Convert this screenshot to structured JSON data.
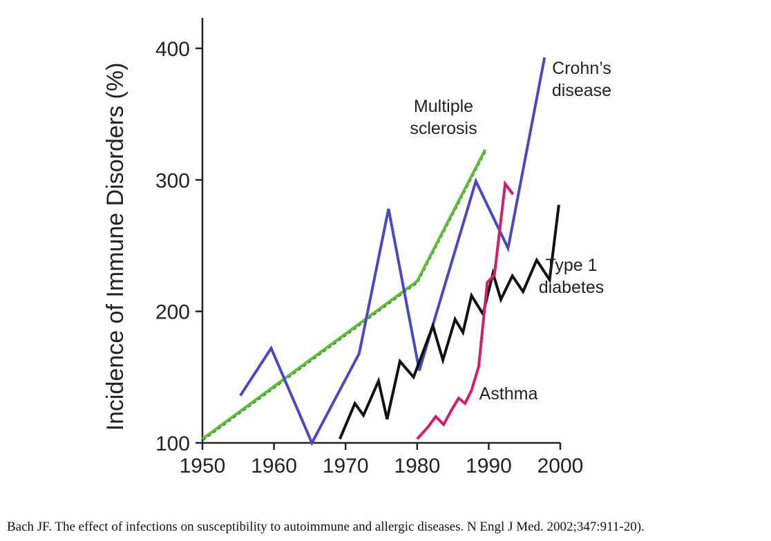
{
  "chart_data": {
    "type": "line",
    "title": "",
    "xlabel": "",
    "ylabel": "Incidence of Immune Disorders (%)",
    "xlim": [
      1950,
      2000
    ],
    "ylim": [
      100,
      420
    ],
    "x_ticks": [
      1950,
      1960,
      1970,
      1980,
      1990,
      2000
    ],
    "y_ticks": [
      100,
      200,
      300,
      400
    ],
    "grid": false,
    "legend": "inline labels",
    "series": [
      {
        "name": "Multiple sclerosis",
        "color": "#5cc036",
        "x": [
          1950,
          1980,
          1989.5
        ],
        "y": [
          103,
          223,
          323
        ]
      },
      {
        "name": "Crohn's disease",
        "color": "#4a4ac0",
        "x": [
          1955.3,
          1959.6,
          1965.3,
          1971.9,
          1976,
          1980.3,
          1988.2,
          1992.7,
          1997.8
        ],
        "y": [
          136,
          172,
          100,
          168,
          278,
          155,
          299,
          248,
          393
        ]
      },
      {
        "name": "Type 1 diabetes",
        "color": "#111111",
        "x": [
          1969.2,
          1971.3,
          1972.5,
          1974.6,
          1975.8,
          1977.6,
          1979.5,
          1982.2,
          1983.6,
          1985.3,
          1986.4,
          1987.6,
          1989.2,
          1990.6,
          1991.7,
          1993.3,
          1994.8,
          1996.7,
          1998.5,
          1999.8
        ],
        "y": [
          103,
          130,
          121,
          147,
          118,
          162,
          150,
          189,
          163,
          194,
          184,
          212,
          198,
          229,
          209,
          227,
          215,
          239,
          224,
          281
        ]
      },
      {
        "name": "Asthma",
        "color": "#d41e6b",
        "x": [
          1980,
          1981.5,
          1982.6,
          1983.7,
          1984.7,
          1985.8,
          1986.7,
          1987.6,
          1988.6,
          1989.8,
          1990.8,
          1992.3,
          1993.4
        ],
        "y": [
          103,
          112,
          120,
          114,
          124,
          134,
          130,
          140,
          158,
          222,
          228,
          297,
          289
        ]
      }
    ],
    "annotations": [
      {
        "series": "Multiple sclerosis",
        "lines": [
          "Multiple",
          "sclerosis"
        ]
      },
      {
        "series": "Crohn's disease",
        "lines": [
          "Crohn’s",
          "disease"
        ]
      },
      {
        "series": "Type 1 diabetes",
        "lines": [
          "Type 1",
          "diabetes"
        ]
      },
      {
        "series": "Asthma",
        "lines": [
          "Asthma"
        ]
      }
    ]
  },
  "citation": "Bach JF. The effect of infections on susceptibility to autoimmune and allergic diseases. N Engl J Med. 2002;347:911-20)."
}
